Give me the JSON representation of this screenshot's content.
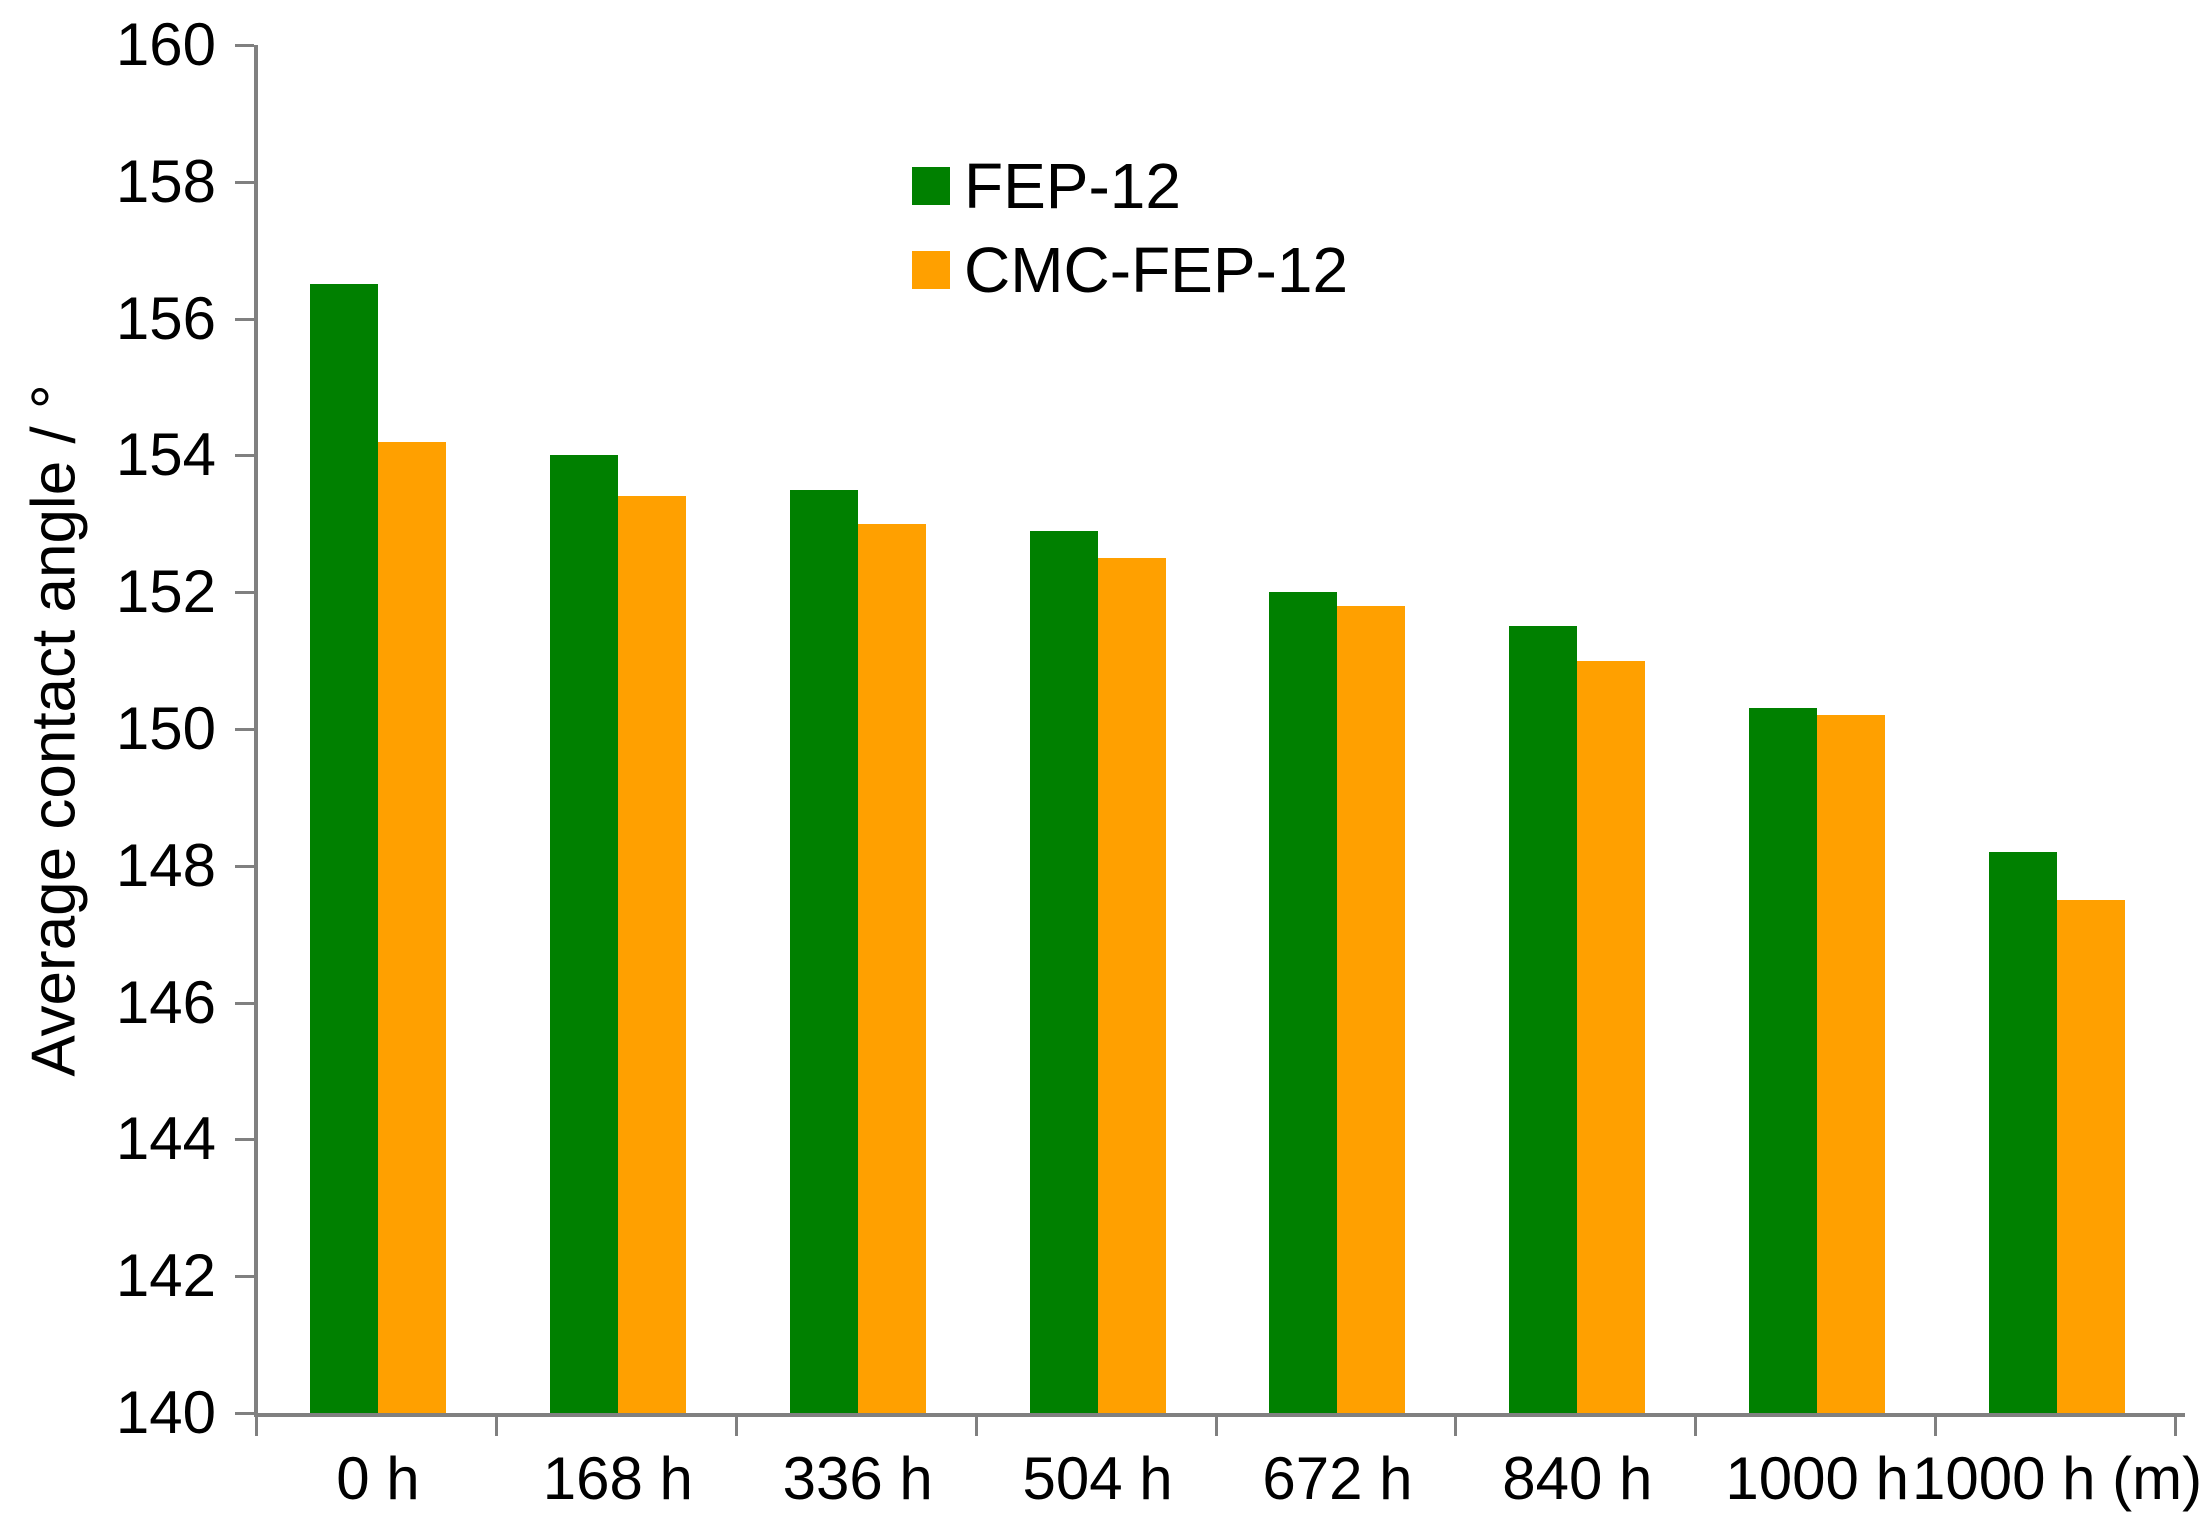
{
  "chart_data": {
    "type": "bar",
    "title": "",
    "xlabel": "",
    "ylabel": "Average contact angle / °",
    "categories": [
      "0 h",
      "168 h",
      "336 h",
      "504 h",
      "672 h",
      "840 h",
      "1000 h",
      "1000 h (m)"
    ],
    "series": [
      {
        "name": "FEP-12",
        "color": "#008000",
        "values": [
          156.5,
          154.0,
          153.5,
          152.9,
          152.0,
          151.5,
          150.3,
          148.2
        ]
      },
      {
        "name": "CMC-FEP-12",
        "color": "#FFA000",
        "values": [
          154.2,
          153.4,
          153.0,
          152.5,
          151.8,
          151.0,
          150.2,
          147.5
        ]
      }
    ],
    "ylim": [
      140,
      160
    ],
    "yticks": [
      140,
      142,
      144,
      146,
      148,
      150,
      152,
      154,
      156,
      158,
      160
    ],
    "grid": false,
    "legend_position": "top-center",
    "axis_color": "#808080",
    "text_color": "#000000"
  }
}
